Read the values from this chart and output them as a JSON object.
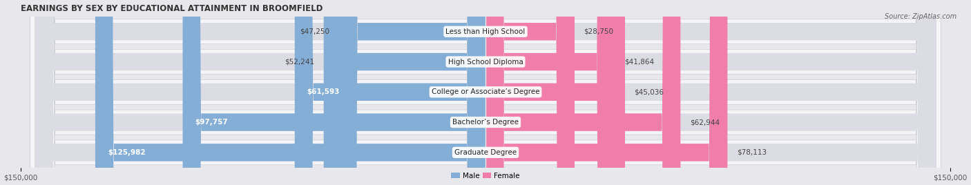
{
  "title": "EARNINGS BY SEX BY EDUCATIONAL ATTAINMENT IN BROOMFIELD",
  "source": "Source: ZipAtlas.com",
  "categories": [
    "Less than High School",
    "High School Diploma",
    "College or Associate’s Degree",
    "Bachelor’s Degree",
    "Graduate Degree"
  ],
  "male_values": [
    47250,
    52241,
    61593,
    97757,
    125982
  ],
  "female_values": [
    28750,
    41864,
    45036,
    62944,
    78113
  ],
  "male_color": "#85aed6",
  "female_color": "#f07daa",
  "male_label": "Male",
  "female_label": "Female",
  "axis_max": 150000,
  "bg_color": "#e8e8ec",
  "row_bg_color": "#f5f5f7",
  "bar_bg_color": "#dcdce4",
  "title_fontsize": 8.5,
  "source_fontsize": 7.0,
  "label_fontsize": 7.5,
  "value_fontsize": 7.5,
  "tick_fontsize": 7.5
}
